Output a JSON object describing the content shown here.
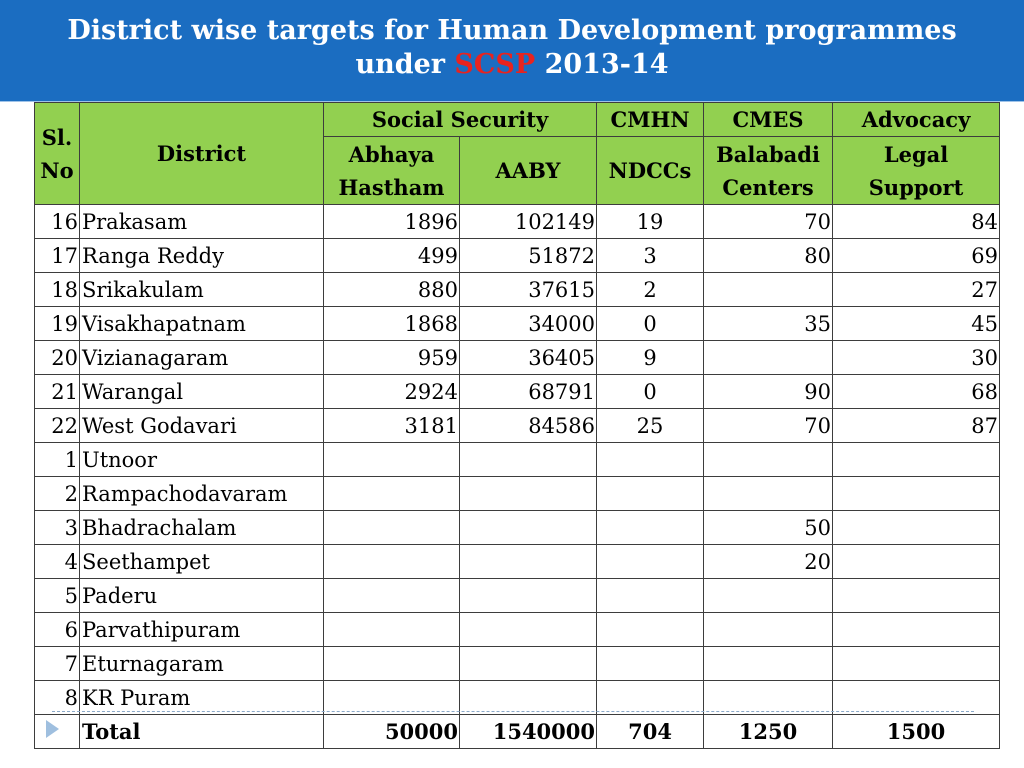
{
  "title": {
    "line1": "District wise targets for Human Development programmes",
    "line2_pre": "under ",
    "line2_red": "SCSP",
    "line2_post": " 2013-14"
  },
  "header": {
    "sl_no": "Sl. No",
    "district": "District",
    "group_social_security": "Social Security",
    "group_cmhn": "CMHN",
    "group_cmes": "CMES",
    "group_advocacy": "Advocacy",
    "col_abhaya": "Abhaya Hastham",
    "col_aaby": "AABY",
    "col_ndccs": "NDCCs",
    "col_balabadi": "Balabadi Centers",
    "col_legal": "Legal Support"
  },
  "rows": [
    {
      "sl": "16",
      "district": "Prakasam",
      "abhaya": "1896",
      "aaby": "102149",
      "ndccs": "19",
      "balabadi": "70",
      "legal": "84"
    },
    {
      "sl": "17",
      "district": "Ranga Reddy",
      "abhaya": "499",
      "aaby": "51872",
      "ndccs": "3",
      "balabadi": "80",
      "legal": "69"
    },
    {
      "sl": "18",
      "district": "Srikakulam",
      "abhaya": "880",
      "aaby": "37615",
      "ndccs": "2",
      "balabadi": "",
      "legal": "27"
    },
    {
      "sl": "19",
      "district": "Visakhapatnam",
      "abhaya": "1868",
      "aaby": "34000",
      "ndccs": "0",
      "balabadi": "35",
      "legal": "45"
    },
    {
      "sl": "20",
      "district": "Vizianagaram",
      "abhaya": "959",
      "aaby": "36405",
      "ndccs": "9",
      "balabadi": "",
      "legal": "30"
    },
    {
      "sl": "21",
      "district": "Warangal",
      "abhaya": "2924",
      "aaby": "68791",
      "ndccs": "0",
      "balabadi": "90",
      "legal": "68"
    },
    {
      "sl": "22",
      "district": "West Godavari",
      "abhaya": "3181",
      "aaby": "84586",
      "ndccs": "25",
      "balabadi": "70",
      "legal": "87"
    },
    {
      "sl": "1",
      "district": "Utnoor",
      "abhaya": "",
      "aaby": "",
      "ndccs": "",
      "balabadi": "",
      "legal": ""
    },
    {
      "sl": "2",
      "district": "Rampachodavaram",
      "abhaya": "",
      "aaby": "",
      "ndccs": "",
      "balabadi": "",
      "legal": ""
    },
    {
      "sl": "3",
      "district": "Bhadrachalam",
      "abhaya": "",
      "aaby": "",
      "ndccs": "",
      "balabadi": "50",
      "legal": ""
    },
    {
      "sl": "4",
      "district": "Seethampet",
      "abhaya": "",
      "aaby": "",
      "ndccs": "",
      "balabadi": "20",
      "legal": ""
    },
    {
      "sl": "5",
      "district": "Paderu",
      "abhaya": "",
      "aaby": "",
      "ndccs": "",
      "balabadi": "",
      "legal": ""
    },
    {
      "sl": "6",
      "district": "Parvathipuram",
      "abhaya": "",
      "aaby": "",
      "ndccs": "",
      "balabadi": "",
      "legal": ""
    },
    {
      "sl": "7",
      "district": "Eturnagaram",
      "abhaya": "",
      "aaby": "",
      "ndccs": "",
      "balabadi": "",
      "legal": ""
    },
    {
      "sl": "8",
      "district": "KR Puram",
      "abhaya": "",
      "aaby": "",
      "ndccs": "",
      "balabadi": "",
      "legal": ""
    }
  ],
  "total": {
    "label": "Total",
    "abhaya": "50000",
    "aaby": "1540000",
    "ndccs": "704",
    "balabadi": "1250",
    "legal": "1500"
  },
  "colors": {
    "header_bg": "#1b6dc1",
    "scsp_red": "#e8231f",
    "table_header_green": "#92d050"
  },
  "icons": {
    "nav_arrow": "right-triangle-arrow-icon"
  }
}
